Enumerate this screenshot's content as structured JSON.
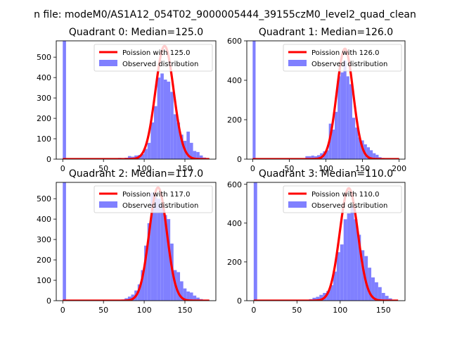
{
  "figure": {
    "suptitle": "n file: modeM0/AS1A12_054T02_9000005444_39155czM0_level2_quad_clean"
  },
  "colors": {
    "poisson_line": "#ff0000",
    "observed_bars": "#8080ff"
  },
  "chart_data": [
    {
      "type": "histogram",
      "title": "Quadrant 0: Median=125.0",
      "xlim": [
        -8,
        188
      ],
      "ylim": [
        0,
        580
      ],
      "xticks": [
        0,
        50,
        100,
        150
      ],
      "yticks": [
        0,
        100,
        200,
        300,
        400,
        500
      ],
      "legend_position": "upper-right",
      "series": [
        {
          "name": "Poission with 125.0",
          "kind": "line",
          "mean": 125.0,
          "scale": 555
        },
        {
          "name": "Observed distribution",
          "kind": "bar",
          "bins": [
            [
              0,
              4,
              580
            ],
            [
              60,
              64,
              5
            ],
            [
              64,
              68,
              5
            ],
            [
              68,
              72,
              6
            ],
            [
              72,
              76,
              4
            ],
            [
              76,
              80,
              7
            ],
            [
              80,
              84,
              15
            ],
            [
              84,
              88,
              12
            ],
            [
              88,
              92,
              18
            ],
            [
              92,
              96,
              20
            ],
            [
              96,
              100,
              25
            ],
            [
              100,
              104,
              50
            ],
            [
              104,
              108,
              80
            ],
            [
              108,
              112,
              180
            ],
            [
              112,
              116,
              260
            ],
            [
              116,
              120,
              400
            ],
            [
              120,
              124,
              420
            ],
            [
              124,
              128,
              390
            ],
            [
              128,
              132,
              380
            ],
            [
              132,
              136,
              330
            ],
            [
              136,
              140,
              220
            ],
            [
              140,
              144,
              180
            ],
            [
              144,
              148,
              120
            ],
            [
              148,
              152,
              90
            ],
            [
              152,
              156,
              135
            ],
            [
              156,
              160,
              80
            ],
            [
              160,
              164,
              40
            ],
            [
              164,
              168,
              35
            ],
            [
              168,
              172,
              18
            ],
            [
              172,
              176,
              8
            ],
            [
              176,
              180,
              2
            ]
          ]
        }
      ]
    },
    {
      "type": "histogram",
      "title": "Quadrant 1: Median=126.0",
      "xlim": [
        -8,
        208
      ],
      "ylim": [
        0,
        600
      ],
      "xticks": [
        0,
        50,
        100,
        150,
        200
      ],
      "yticks": [
        0,
        200,
        400,
        600
      ],
      "legend_position": "upper-right",
      "series": [
        {
          "name": "Poission with 126.0",
          "kind": "line",
          "mean": 126.0,
          "scale": 560
        },
        {
          "name": "Observed distribution",
          "kind": "bar",
          "bins": [
            [
              0,
              4,
              600
            ],
            [
              60,
              64,
              3
            ],
            [
              64,
              68,
              5
            ],
            [
              68,
              72,
              5
            ],
            [
              72,
              76,
              15
            ],
            [
              76,
              80,
              15
            ],
            [
              80,
              84,
              18
            ],
            [
              84,
              88,
              15
            ],
            [
              88,
              92,
              20
            ],
            [
              92,
              96,
              30
            ],
            [
              96,
              100,
              40
            ],
            [
              100,
              104,
              45
            ],
            [
              104,
              108,
              180
            ],
            [
              108,
              112,
              150
            ],
            [
              112,
              116,
              240
            ],
            [
              116,
              120,
              420
            ],
            [
              120,
              124,
              440
            ],
            [
              124,
              128,
              500
            ],
            [
              128,
              132,
              420
            ],
            [
              132,
              136,
              380
            ],
            [
              136,
              140,
              210
            ],
            [
              140,
              144,
              160
            ],
            [
              144,
              148,
              110
            ],
            [
              148,
              152,
              95
            ],
            [
              152,
              156,
              75
            ],
            [
              156,
              160,
              60
            ],
            [
              160,
              164,
              45
            ],
            [
              164,
              168,
              30
            ],
            [
              168,
              172,
              22
            ],
            [
              172,
              176,
              10
            ],
            [
              176,
              180,
              6
            ],
            [
              180,
              184,
              3
            ]
          ]
        }
      ]
    },
    {
      "type": "histogram",
      "title": "Quadrant 2: Median=117.0",
      "xlim": [
        -8,
        188
      ],
      "ylim": [
        0,
        580
      ],
      "xticks": [
        0,
        50,
        100,
        150
      ],
      "yticks": [
        0,
        100,
        200,
        300,
        400,
        500
      ],
      "legend_position": "upper-right",
      "series": [
        {
          "name": "Poission with 117.0",
          "kind": "line",
          "mean": 117.0,
          "scale": 555
        },
        {
          "name": "Observed distribution",
          "kind": "bar",
          "bins": [
            [
              0,
              4,
              580
            ],
            [
              64,
              68,
              3
            ],
            [
              68,
              72,
              4
            ],
            [
              72,
              76,
              6
            ],
            [
              76,
              80,
              12
            ],
            [
              80,
              84,
              20
            ],
            [
              84,
              88,
              30
            ],
            [
              88,
              92,
              50
            ],
            [
              92,
              96,
              80
            ],
            [
              96,
              100,
              150
            ],
            [
              100,
              104,
              270
            ],
            [
              104,
              108,
              380
            ],
            [
              108,
              112,
              530
            ],
            [
              112,
              116,
              510
            ],
            [
              116,
              120,
              500
            ],
            [
              120,
              124,
              470
            ],
            [
              124,
              128,
              420
            ],
            [
              128,
              132,
              400
            ],
            [
              132,
              136,
              280
            ],
            [
              136,
              140,
              150
            ],
            [
              140,
              144,
              140
            ],
            [
              144,
              148,
              95
            ],
            [
              148,
              152,
              60
            ],
            [
              152,
              156,
              45
            ],
            [
              156,
              160,
              40
            ],
            [
              160,
              164,
              25
            ],
            [
              164,
              168,
              15
            ],
            [
              168,
              172,
              8
            ],
            [
              172,
              176,
              3
            ]
          ]
        }
      ]
    },
    {
      "type": "histogram",
      "title": "Quadrant 3: Median=110.0",
      "xlim": [
        -8,
        175
      ],
      "ylim": [
        0,
        610
      ],
      "xticks": [
        0,
        50,
        100,
        150
      ],
      "yticks": [
        0,
        200,
        400,
        600
      ],
      "legend_position": "upper-right",
      "series": [
        {
          "name": "Poission with 110.0",
          "kind": "line",
          "mean": 110.0,
          "scale": 580
        },
        {
          "name": "Observed distribution",
          "kind": "bar",
          "bins": [
            [
              0,
              4,
              610
            ],
            [
              56,
              60,
              3
            ],
            [
              60,
              64,
              5
            ],
            [
              64,
              68,
              8
            ],
            [
              68,
              72,
              15
            ],
            [
              72,
              76,
              20
            ],
            [
              76,
              80,
              30
            ],
            [
              80,
              84,
              40
            ],
            [
              84,
              88,
              50
            ],
            [
              88,
              92,
              80
            ],
            [
              92,
              96,
              150
            ],
            [
              96,
              100,
              250
            ],
            [
              100,
              104,
              290
            ],
            [
              104,
              108,
              420
            ],
            [
              108,
              112,
              450
            ],
            [
              112,
              116,
              490
            ],
            [
              116,
              120,
              420
            ],
            [
              120,
              124,
              340
            ],
            [
              124,
              128,
              260
            ],
            [
              128,
              132,
              230
            ],
            [
              132,
              136,
              170
            ],
            [
              136,
              140,
              120
            ],
            [
              140,
              144,
              95
            ],
            [
              144,
              148,
              70
            ],
            [
              148,
              152,
              40
            ],
            [
              152,
              156,
              25
            ],
            [
              156,
              160,
              12
            ],
            [
              160,
              164,
              5
            ]
          ]
        }
      ]
    }
  ]
}
